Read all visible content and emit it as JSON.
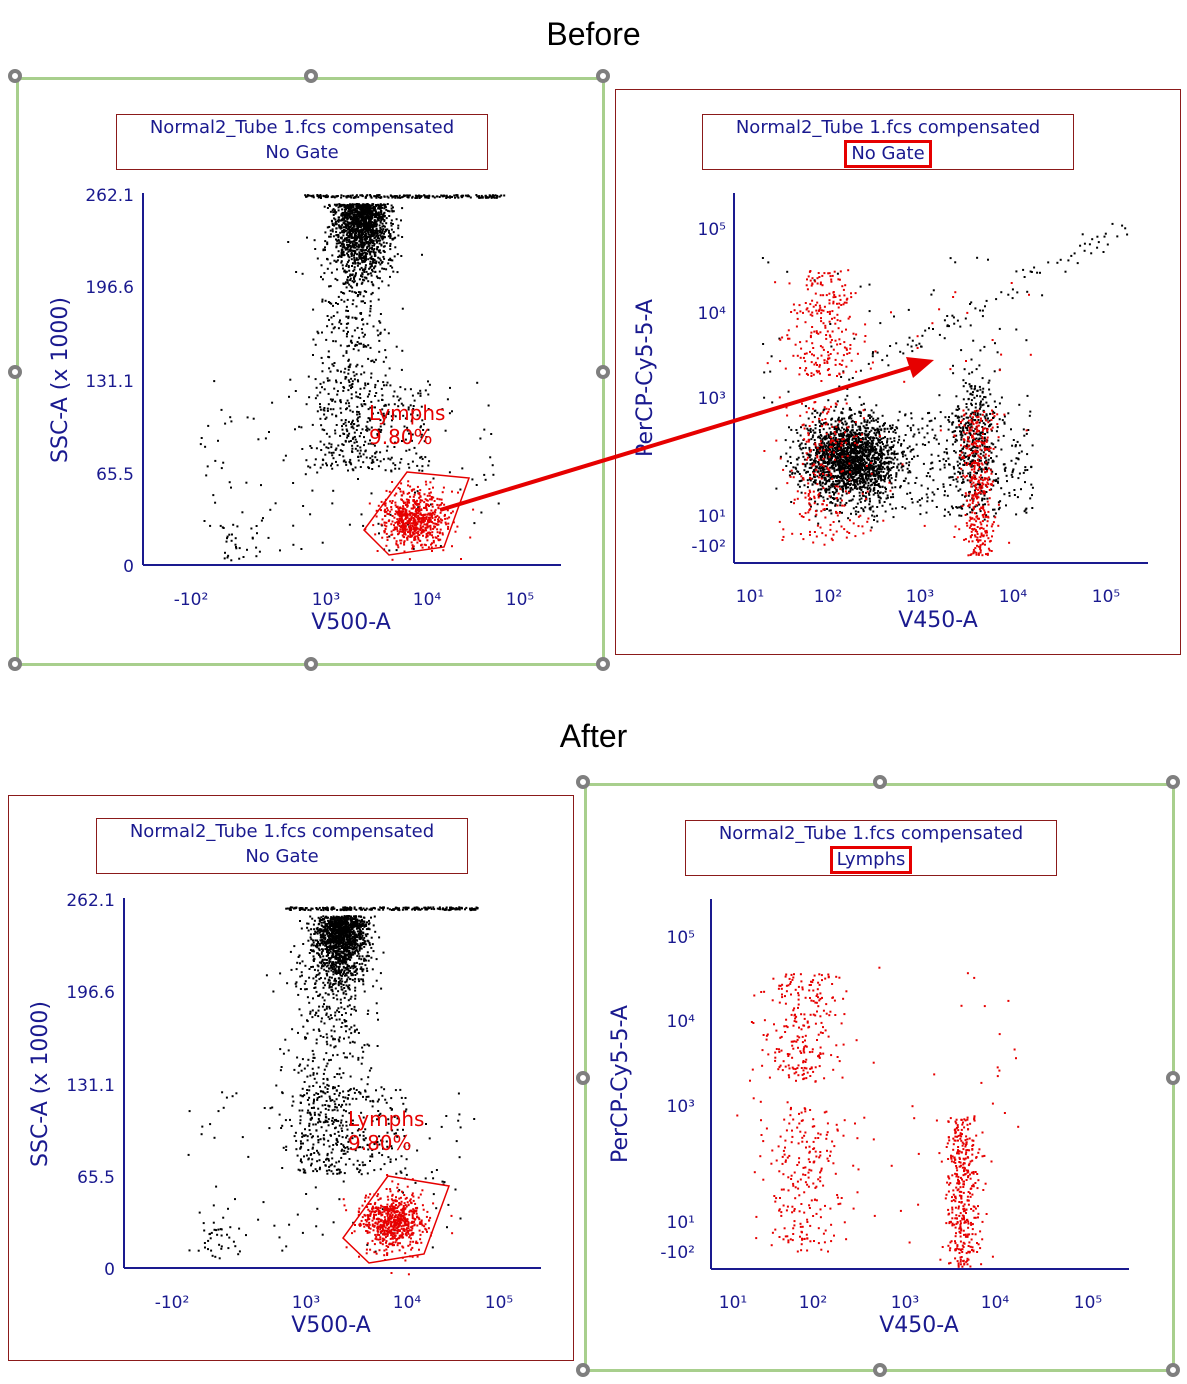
{
  "titles": {
    "before": "Before",
    "after": "After"
  },
  "plots": {
    "before_left": {
      "header_line1": "Normal2_Tube 1.fcs compensated",
      "header_line2": "No Gate"
    },
    "before_right": {
      "header_line1": "Normal2_Tube 1.fcs compensated",
      "header_line2": "No Gate"
    },
    "after_left": {
      "header_line1": "Normal2_Tube 1.fcs compensated",
      "header_line2": "No Gate"
    },
    "after_right": {
      "header_line1": "Normal2_Tube 1.fcs compensated",
      "header_line2": "Lymphs"
    }
  },
  "gate": {
    "name": "Lymphs",
    "percent": "9.80%",
    "color": "#e60000"
  },
  "axes": {
    "ssc": {
      "label": "SSC-A (x 1000)",
      "ticks": [
        "262.1",
        "196.6",
        "131.1",
        "65.5",
        "0"
      ]
    },
    "v500": {
      "label": "V500-A",
      "ticks": [
        "-10²",
        "10³",
        "10⁴",
        "10⁵"
      ]
    },
    "percp": {
      "label": "PerCP-Cy5-5-A",
      "ticks": [
        "10⁵",
        "10⁴",
        "10³",
        "10¹",
        "-10²"
      ]
    },
    "v450": {
      "label": "V450-A",
      "ticks": [
        "10¹",
        "10²",
        "10³",
        "10⁴",
        "10⁵"
      ]
    }
  },
  "colors": {
    "axis": "#1a1a8f",
    "event": "#000000",
    "gated_event": "#e60000",
    "selection_border": "#a8cf8d",
    "plot_border": "#8b1a1a",
    "arrow": "#e60000"
  }
}
